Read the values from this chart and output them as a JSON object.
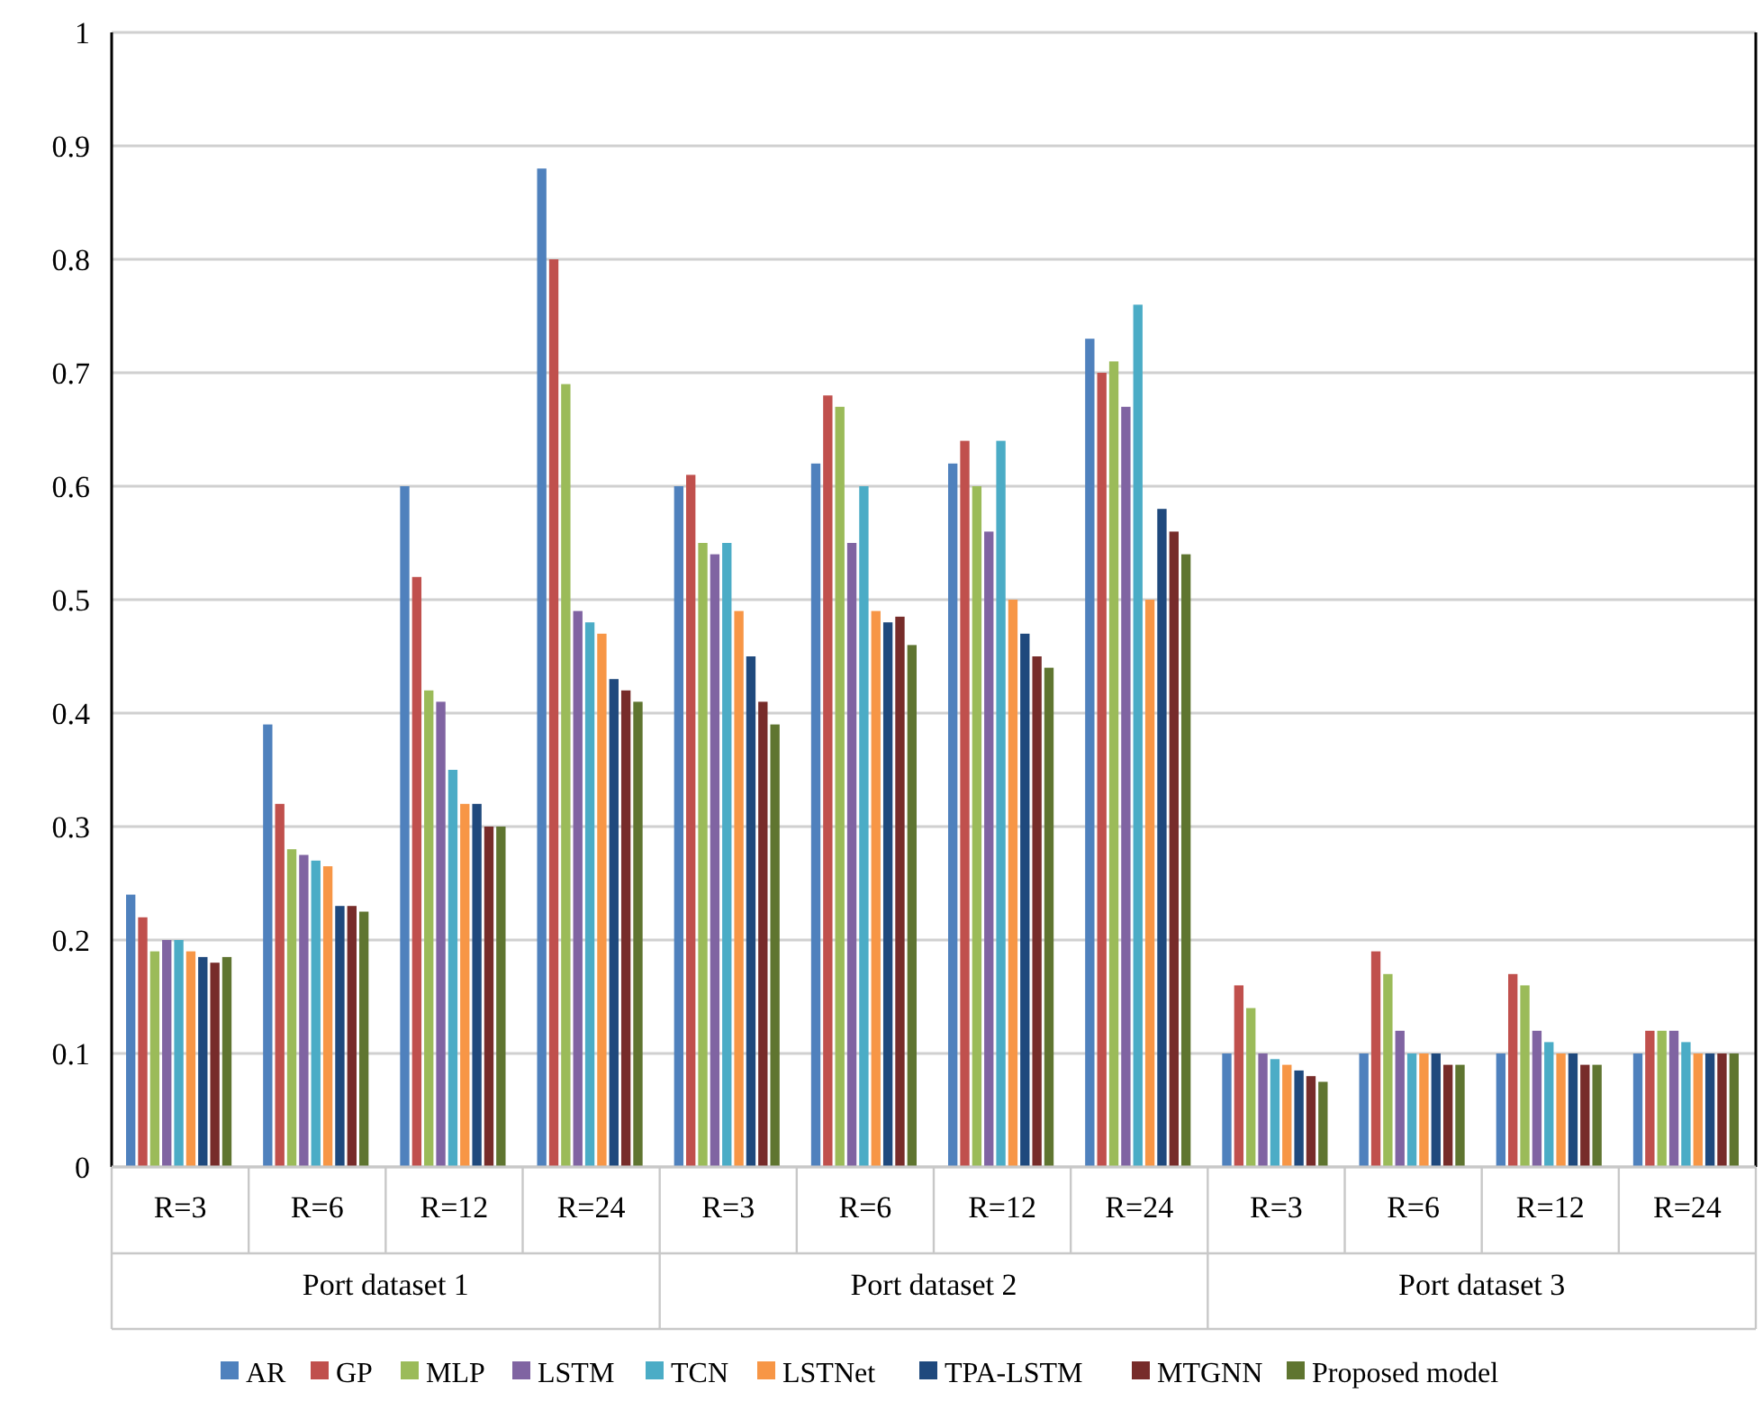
{
  "chart_data": {
    "type": "bar",
    "categories": [
      "R=3",
      "R=6",
      "R=12",
      "R=24",
      "R=3",
      "R=6",
      "R=12",
      "R=24",
      "R=3",
      "R=6",
      "R=12",
      "R=24"
    ],
    "annotations": [
      "Port dataset 1",
      "Port dataset 2",
      "Port dataset 3"
    ],
    "ylim": [
      0,
      1
    ],
    "yticks": [
      0,
      0.1,
      0.2,
      0.3,
      0.4,
      0.5,
      0.6,
      0.7,
      0.8,
      0.9,
      1
    ],
    "grid": "y",
    "legend": "bottom",
    "series": [
      {
        "name": "AR",
        "color": "#4f81bd",
        "values": [
          0.24,
          0.39,
          0.6,
          0.88,
          0.6,
          0.62,
          0.62,
          0.73,
          0.1,
          0.1,
          0.1,
          0.1
        ]
      },
      {
        "name": "GP",
        "color": "#c0504d",
        "values": [
          0.22,
          0.32,
          0.52,
          0.8,
          0.61,
          0.68,
          0.64,
          0.7,
          0.16,
          0.19,
          0.17,
          0.12
        ]
      },
      {
        "name": "MLP",
        "color": "#9bbb59",
        "values": [
          0.19,
          0.28,
          0.42,
          0.69,
          0.55,
          0.67,
          0.6,
          0.71,
          0.14,
          0.17,
          0.16,
          0.12
        ]
      },
      {
        "name": "LSTM",
        "color": "#8064a2",
        "values": [
          0.2,
          0.275,
          0.41,
          0.49,
          0.54,
          0.55,
          0.56,
          0.67,
          0.1,
          0.12,
          0.12,
          0.12
        ]
      },
      {
        "name": "TCN",
        "color": "#4bacc6",
        "values": [
          0.2,
          0.27,
          0.35,
          0.48,
          0.55,
          0.6,
          0.64,
          0.76,
          0.095,
          0.1,
          0.11,
          0.11
        ]
      },
      {
        "name": "LSTNet",
        "color": "#f79646",
        "values": [
          0.19,
          0.265,
          0.32,
          0.47,
          0.49,
          0.49,
          0.5,
          0.5,
          0.09,
          0.1,
          0.1,
          0.1
        ]
      },
      {
        "name": "TPA-LSTM",
        "color": "#1f497d",
        "values": [
          0.185,
          0.23,
          0.32,
          0.43,
          0.45,
          0.48,
          0.47,
          0.58,
          0.085,
          0.1,
          0.1,
          0.1
        ]
      },
      {
        "name": "MTGNN",
        "color": "#772c2a",
        "values": [
          0.18,
          0.23,
          0.3,
          0.42,
          0.41,
          0.485,
          0.45,
          0.56,
          0.08,
          0.09,
          0.09,
          0.1
        ]
      },
      {
        "name": "Proposed model",
        "color": "#5f7530",
        "values": [
          0.185,
          0.225,
          0.3,
          0.41,
          0.39,
          0.46,
          0.44,
          0.54,
          0.075,
          0.09,
          0.09,
          0.1
        ]
      }
    ]
  }
}
